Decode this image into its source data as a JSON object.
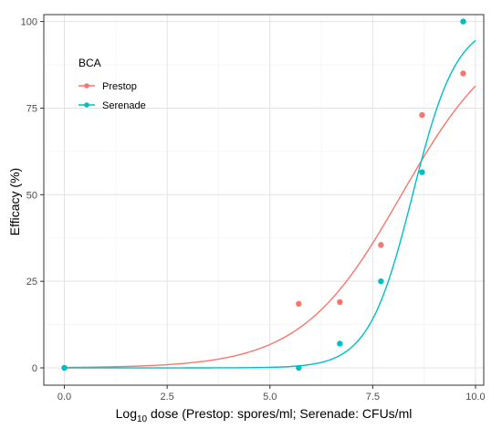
{
  "chart_data": {
    "type": "scatter",
    "xlabel": "Log10 dose (Prestop: spores/ml; Serenade: CFUs/ml",
    "xlabel_parts": {
      "pre": "Log",
      "sub": "10",
      "post": " dose (Prestop: spores/ml; Serenade: CFUs/ml"
    },
    "ylabel": "Efficacy (%)",
    "xlim": [
      -0.5,
      10.2
    ],
    "ylim": [
      -5,
      102
    ],
    "xticks": [
      0,
      2.5,
      5,
      7.5,
      10
    ],
    "xtick_labels": [
      "0.0",
      "2.5",
      "5.0",
      "7.5",
      "10.0"
    ],
    "yticks": [
      0,
      25,
      50,
      75,
      100
    ],
    "ytick_labels": [
      "0",
      "25",
      "50",
      "75",
      "100"
    ],
    "grid": true,
    "legend": {
      "title": "BCA",
      "position": "top-left"
    },
    "series": [
      {
        "name": "Prestop",
        "color": "#F8766D",
        "points": [
          {
            "x": 0,
            "y": 0
          },
          {
            "x": 5.7,
            "y": 18.5
          },
          {
            "x": 6.7,
            "y": 19
          },
          {
            "x": 7.7,
            "y": 35.5
          },
          {
            "x": 8.7,
            "y": 73
          },
          {
            "x": 9.7,
            "y": 85
          }
        ],
        "curve": {
          "model": "logistic",
          "upper": 100,
          "midpoint": 8.2,
          "slope": 0.82,
          "x_from": 0,
          "x_to": 10
        }
      },
      {
        "name": "Serenade",
        "color": "#00BFC4",
        "points": [
          {
            "x": 0,
            "y": 0
          },
          {
            "x": 5.7,
            "y": 0
          },
          {
            "x": 6.7,
            "y": 7
          },
          {
            "x": 7.7,
            "y": 25
          },
          {
            "x": 8.7,
            "y": 56.5
          },
          {
            "x": 9.7,
            "y": 100
          }
        ],
        "curve": {
          "model": "logistic",
          "upper": 100,
          "midpoint": 8.47,
          "slope": 1.86,
          "x_from": 0,
          "x_to": 10
        }
      }
    ]
  }
}
